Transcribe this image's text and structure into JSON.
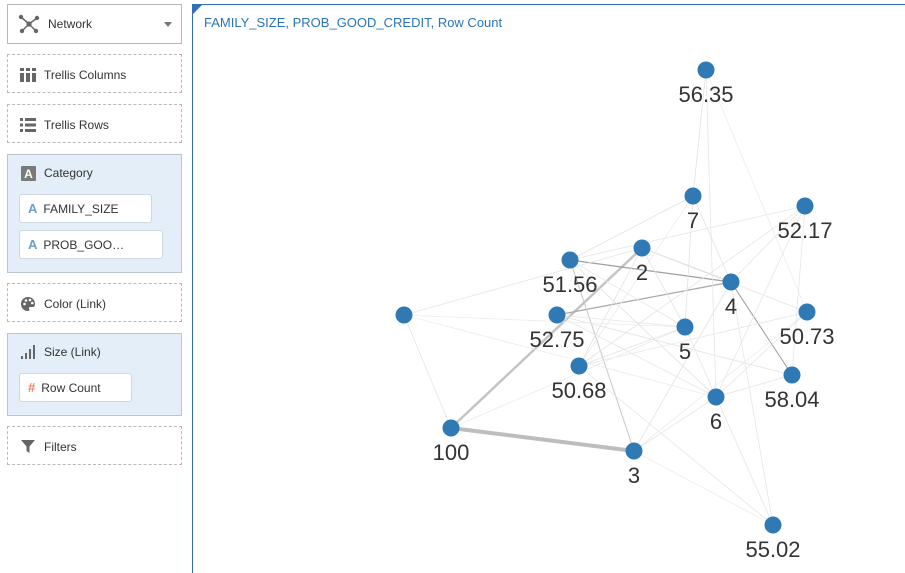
{
  "left_panel": {
    "viz_type": {
      "label": "Network",
      "icon": "network-icon"
    },
    "trellis_columns": {
      "label": "Trellis Columns",
      "icon": "columns-icon"
    },
    "trellis_rows": {
      "label": "Trellis Rows",
      "icon": "rows-icon"
    },
    "category": {
      "label": "Category",
      "icon": "attribute-a-icon",
      "items": [
        {
          "label": "FAMILY_SIZE",
          "icon": "attribute-a-icon"
        },
        {
          "label": "PROB_GOO…",
          "icon": "attribute-a-icon"
        }
      ]
    },
    "color_link": {
      "label": "Color (Link)",
      "icon": "palette-icon"
    },
    "size_link": {
      "label": "Size (Link)",
      "icon": "size-icon",
      "items": [
        {
          "label": "Row Count",
          "icon": "hash-icon"
        }
      ]
    },
    "filters": {
      "label": "Filters",
      "icon": "filter-icon"
    }
  },
  "chart": {
    "title": "FAMILY_SIZE, PROB_GOOD_CREDIT, Row Count",
    "node_color": "#2f79b5",
    "edge_color": "#cfcfcf",
    "nodes": [
      {
        "id": "n5635",
        "label": "56.35"
      },
      {
        "id": "n7",
        "label": "7"
      },
      {
        "id": "n5217",
        "label": "52.17"
      },
      {
        "id": "n2",
        "label": "2"
      },
      {
        "id": "n5156",
        "label": "51.56"
      },
      {
        "id": "n4",
        "label": "4"
      },
      {
        "id": "nblank",
        "label": ""
      },
      {
        "id": "n5275",
        "label": "52.75"
      },
      {
        "id": "n5",
        "label": "5"
      },
      {
        "id": "n5073",
        "label": "50.73"
      },
      {
        "id": "n5068",
        "label": "50.68"
      },
      {
        "id": "n5804",
        "label": "58.04"
      },
      {
        "id": "n6",
        "label": "6"
      },
      {
        "id": "n100",
        "label": "100"
      },
      {
        "id": "n3",
        "label": "3"
      },
      {
        "id": "n5502",
        "label": "55.02"
      }
    ]
  }
}
